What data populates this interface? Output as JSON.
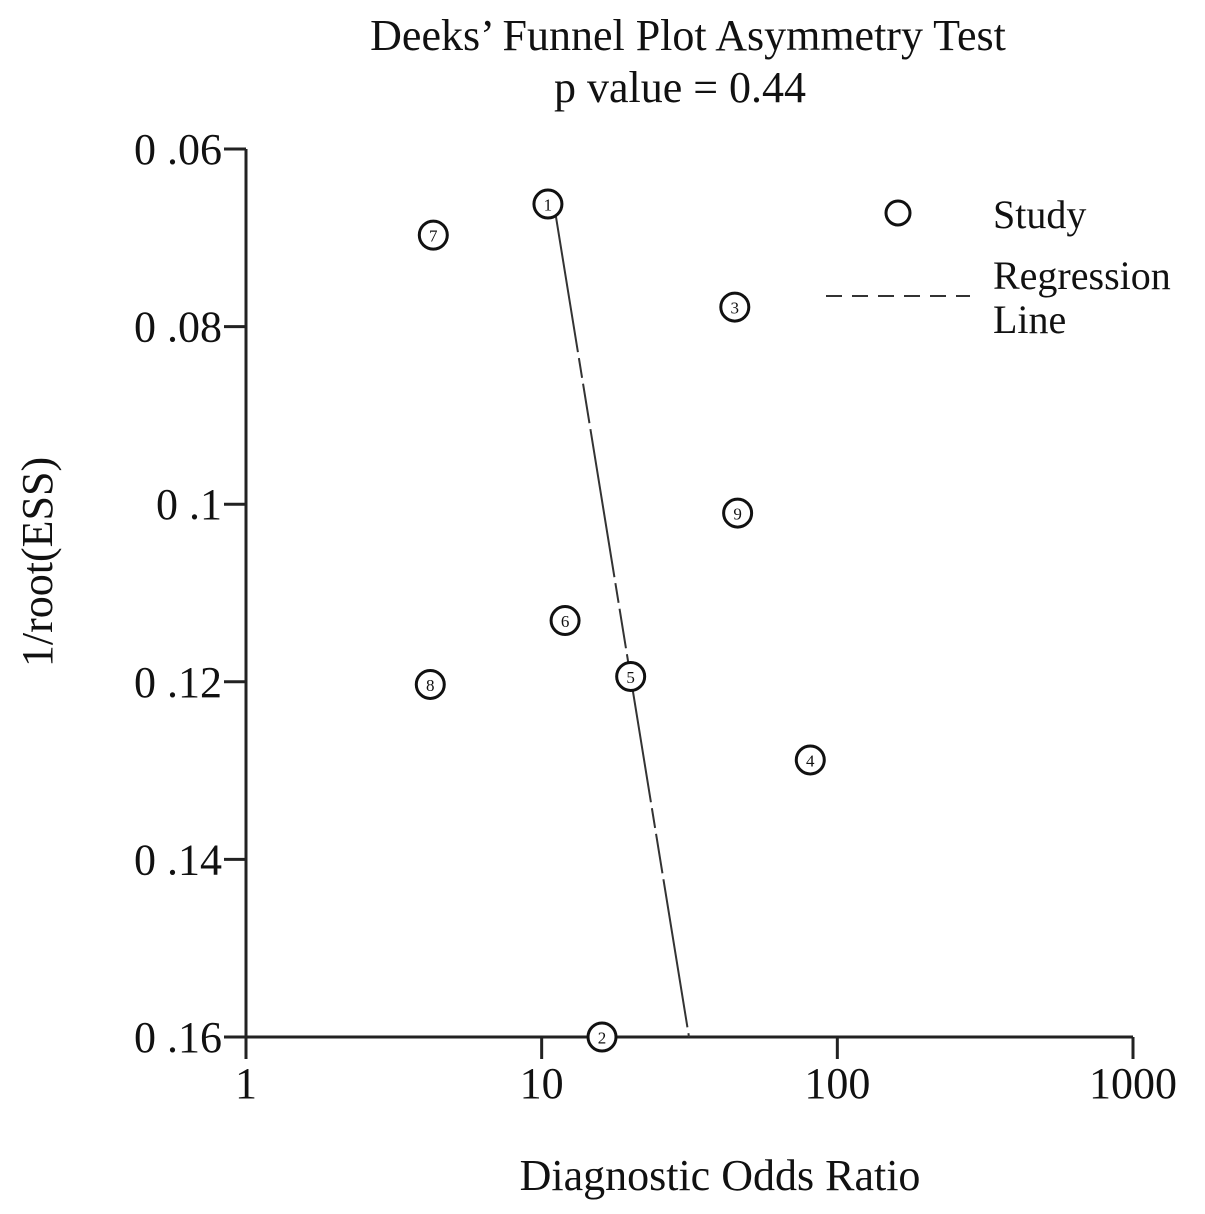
{
  "chart_data": {
    "type": "scatter",
    "title": "Deeks’ Funnel Plot Asymmetry Test",
    "subtitle": "p value  =   0.44",
    "xlabel": "Diagnostic Odds Ratio",
    "ylabel": "1/root(ESS)",
    "x_scale": "log",
    "xlim": [
      1,
      1000
    ],
    "ylim": [
      0.06,
      0.16
    ],
    "y_inverted": true,
    "x_ticks": [
      1,
      10,
      100,
      1000
    ],
    "x_tick_labels": [
      "1",
      "10",
      "100",
      "1000"
    ],
    "y_ticks": [
      0.06,
      0.08,
      0.1,
      0.12,
      0.14,
      0.16
    ],
    "y_tick_labels": [
      "0 .06",
      "0 .08",
      "0 .1",
      "0 .12",
      "0 .14",
      "0 .16"
    ],
    "grid": false,
    "legend": {
      "placement": "top-right",
      "entries": [
        {
          "label": "Study",
          "marker": "circle"
        },
        {
          "label_lines": [
            "Regression",
            "Line"
          ],
          "marker": "dashed-line"
        }
      ]
    },
    "series": [
      {
        "name": "Study",
        "points": [
          {
            "label": "1",
            "x": 10.5,
            "y": 0.0662
          },
          {
            "label": "2",
            "x": 16,
            "y": 0.16
          },
          {
            "label": "3",
            "x": 45,
            "y": 0.0778
          },
          {
            "label": "4",
            "x": 81,
            "y": 0.1288
          },
          {
            "label": "5",
            "x": 20,
            "y": 0.1194
          },
          {
            "label": "6",
            "x": 12,
            "y": 0.1131
          },
          {
            "label": "7",
            "x": 4.3,
            "y": 0.0697
          },
          {
            "label": "8",
            "x": 4.2,
            "y": 0.1203
          },
          {
            "label": "9",
            "x": 46,
            "y": 0.101
          }
        ]
      },
      {
        "name": "Regression Line",
        "style": "dashed",
        "points": [
          {
            "x": 11,
            "y": 0.0662
          },
          {
            "x": 31.5,
            "y": 0.16
          }
        ]
      }
    ]
  }
}
